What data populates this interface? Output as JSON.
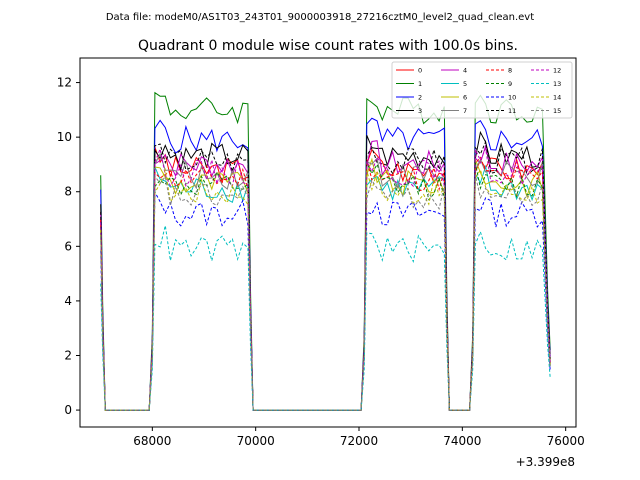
{
  "header": {
    "data_file": "Data file: modeM0/AS1T03_243T01_9000003918_27216cztM0_level2_quad_clean.evt"
  },
  "chart_data": {
    "type": "line",
    "title": "Quadrant 0 module wise count rates with 100.0s bins.",
    "xlabel": "",
    "ylabel": "",
    "x_offset_label": "+3.399e8",
    "xlim": [
      66600,
      76200
    ],
    "ylim": [
      -0.62,
      12.9
    ],
    "x_ticks": [
      68000,
      70000,
      72000,
      74000,
      76000
    ],
    "x_tick_labels": [
      "68000",
      "70000",
      "72000",
      "74000",
      "76000"
    ],
    "y_ticks": [
      0,
      2,
      4,
      6,
      8,
      10,
      12
    ],
    "y_tick_labels": [
      "0",
      "2",
      "4",
      "6",
      "8",
      "10",
      "12"
    ],
    "legend_position": "top-right",
    "series": [
      {
        "name": "0",
        "color": "#ff0000",
        "dash": "solid",
        "level": 8.8
      },
      {
        "name": "1",
        "color": "#008000",
        "dash": "solid",
        "level": 11.0
      },
      {
        "name": "2",
        "color": "#0000ff",
        "dash": "solid",
        "level": 9.9
      },
      {
        "name": "3",
        "color": "#000000",
        "dash": "solid",
        "level": 9.3
      },
      {
        "name": "4",
        "color": "#bf00bf",
        "dash": "solid",
        "level": 9.0
      },
      {
        "name": "5",
        "color": "#00bfbf",
        "dash": "solid",
        "level": 8.1
      },
      {
        "name": "6",
        "color": "#bfbf00",
        "dash": "solid",
        "level": 8.3
      },
      {
        "name": "7",
        "color": "#808080",
        "dash": "solid",
        "level": 8.6
      },
      {
        "name": "8",
        "color": "#ff0000",
        "dash": "dashed",
        "level": 8.5
      },
      {
        "name": "9",
        "color": "#008000",
        "dash": "dashed",
        "level": 8.2
      },
      {
        "name": "10",
        "color": "#0000ff",
        "dash": "dashed",
        "level": 7.2
      },
      {
        "name": "11",
        "color": "#000000",
        "dash": "dashed",
        "level": 9.1
      },
      {
        "name": "12",
        "color": "#bf00bf",
        "dash": "dashed",
        "level": 8.7
      },
      {
        "name": "13",
        "color": "#00bfbf",
        "dash": "dashed",
        "level": 5.9
      },
      {
        "name": "14",
        "color": "#bfbf00",
        "dash": "dashed",
        "level": 8.0
      },
      {
        "name": "15",
        "color": "#808080",
        "dash": "dashed",
        "level": 7.8
      }
    ],
    "segments": [
      {
        "x_start": 67000,
        "x_end": 75700,
        "active_ranges": [
          [
            68000,
            69850
          ],
          [
            72100,
            73650
          ],
          [
            74200,
            75600
          ]
        ]
      }
    ]
  }
}
